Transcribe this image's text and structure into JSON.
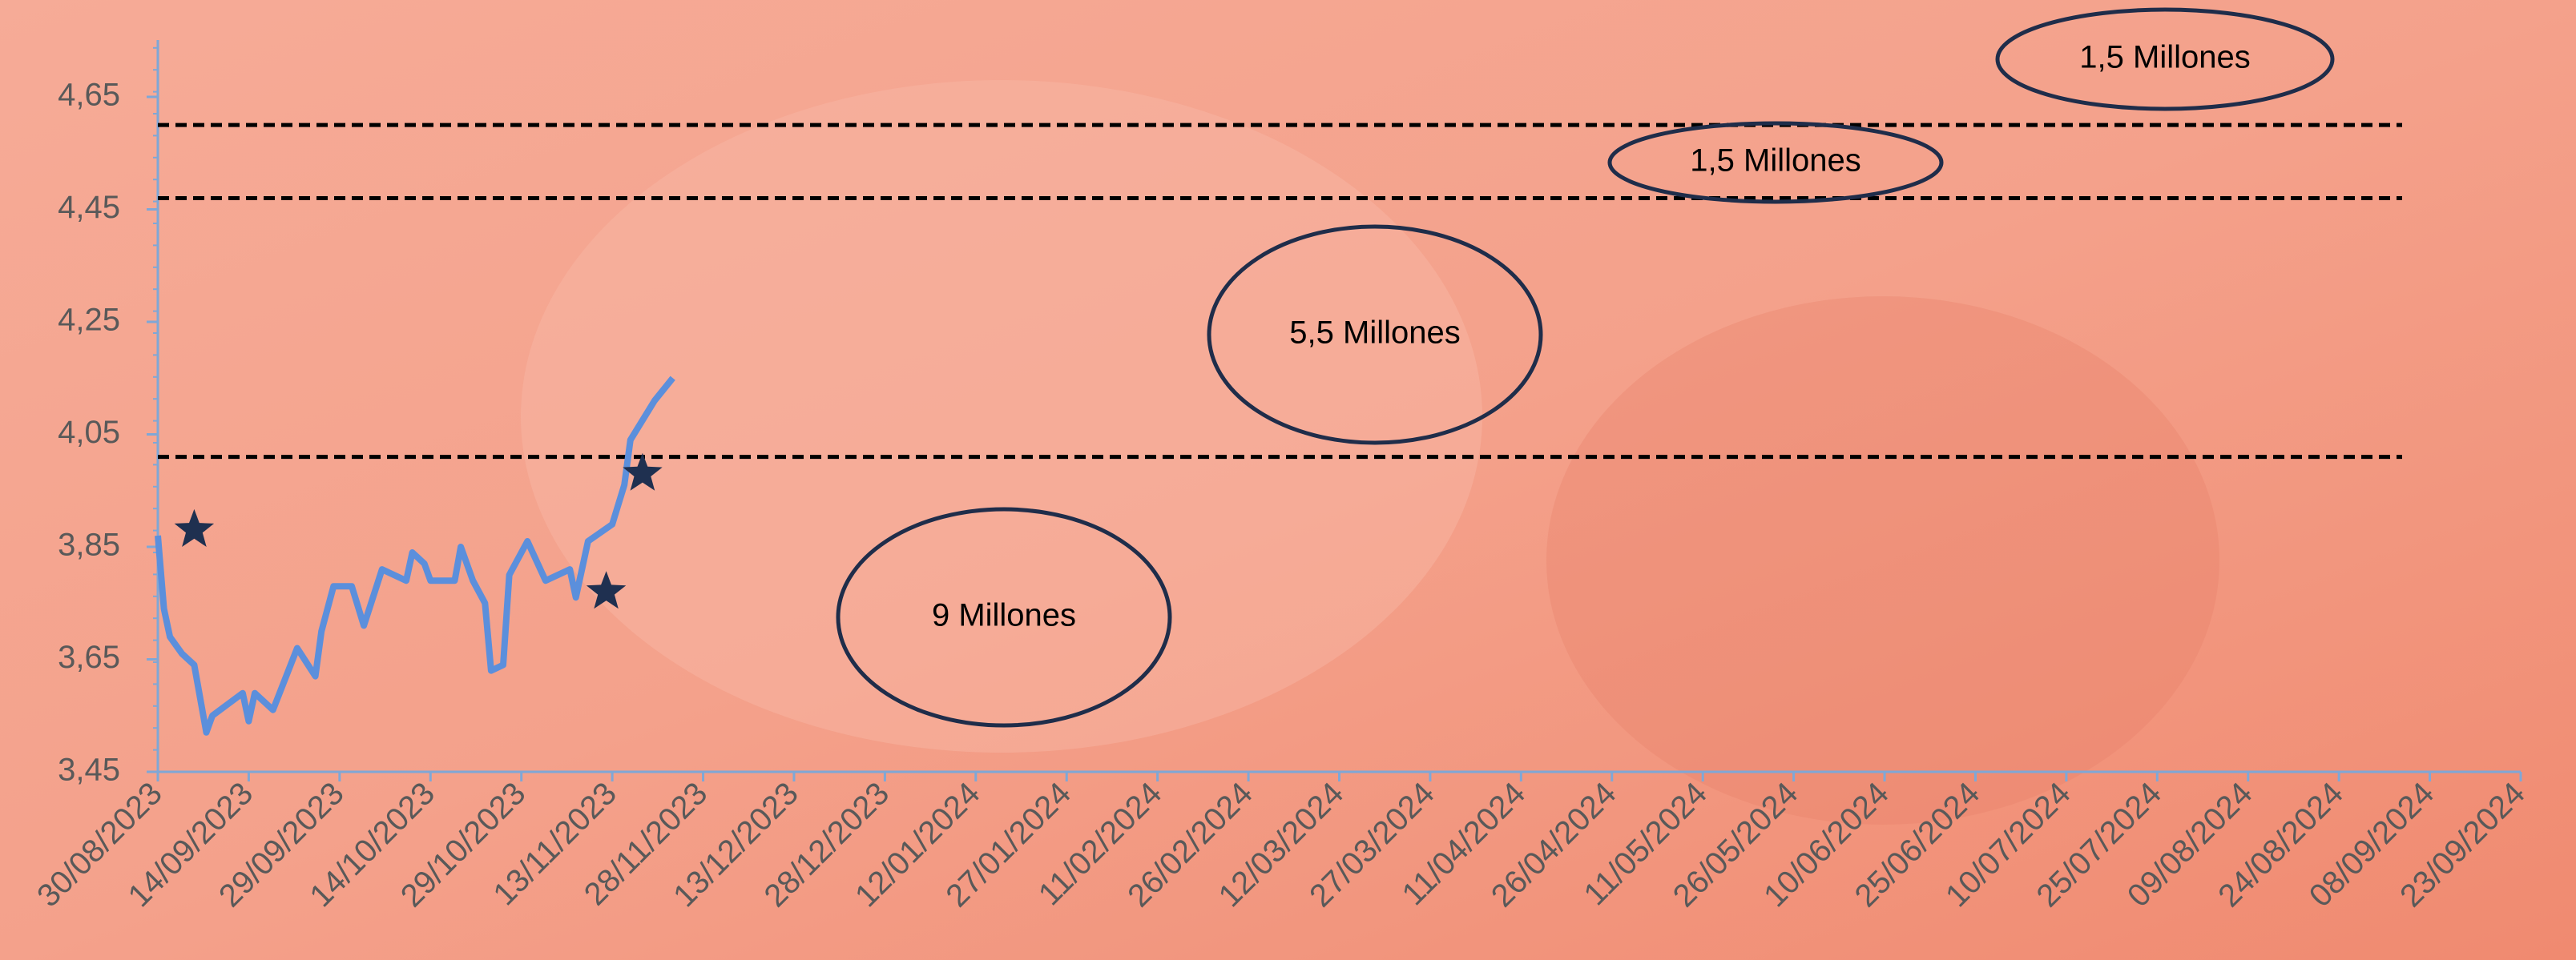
{
  "chart_data": {
    "type": "line",
    "color": "#5b8fdc",
    "x": [
      "2023-08-30",
      "2023-08-31",
      "2023-09-01",
      "2023-09-03",
      "2023-09-05",
      "2023-09-07",
      "2023-09-08",
      "2023-09-13",
      "2023-09-14",
      "2023-09-15",
      "2023-09-18",
      "2023-09-22",
      "2023-09-25",
      "2023-09-26",
      "2023-09-28",
      "2023-10-01",
      "2023-10-03",
      "2023-10-06",
      "2023-10-10",
      "2023-10-11",
      "2023-10-13",
      "2023-10-14",
      "2023-10-18",
      "2023-10-19",
      "2023-10-21",
      "2023-10-23",
      "2023-10-24",
      "2023-10-26",
      "2023-10-27",
      "2023-10-30",
      "2023-11-02",
      "2023-11-06",
      "2023-11-07",
      "2023-11-09",
      "2023-11-13",
      "2023-11-15",
      "2023-11-16",
      "2023-11-20",
      "2023-11-23"
    ],
    "values": [
      3.87,
      3.74,
      3.69,
      3.66,
      3.64,
      3.52,
      3.55,
      3.59,
      3.54,
      3.59,
      3.56,
      3.67,
      3.62,
      3.7,
      3.78,
      3.78,
      3.71,
      3.81,
      3.79,
      3.84,
      3.82,
      3.79,
      3.79,
      3.85,
      3.79,
      3.75,
      3.63,
      3.64,
      3.8,
      3.86,
      3.79,
      3.81,
      3.76,
      3.86,
      3.89,
      3.96,
      4.04,
      4.11,
      4.15
    ],
    "markers": {
      "color": "#1f3050",
      "x": [
        "2023-09-05",
        "2023-11-12",
        "2023-11-18"
      ],
      "values": [
        3.88,
        3.77,
        3.98
      ]
    },
    "reference_lines": [
      4.01,
      4.47,
      4.6
    ],
    "ylim": [
      3.45,
      4.65
    ],
    "yticks": [
      {
        "value": 3.45,
        "label": "3,45"
      },
      {
        "value": 3.65,
        "label": "3,65"
      },
      {
        "value": 3.85,
        "label": "3,85"
      },
      {
        "value": 4.05,
        "label": "4,05"
      },
      {
        "value": 4.25,
        "label": "4,25"
      },
      {
        "value": 4.45,
        "label": "4,45"
      },
      {
        "value": 4.65,
        "label": "4,65"
      }
    ],
    "xlim": [
      "2023-08-30",
      "2024-09-23"
    ],
    "xticks": [
      {
        "value": "2023-08-30",
        "label": "30/08/2023"
      },
      {
        "value": "2023-09-14",
        "label": "14/09/2023"
      },
      {
        "value": "2023-09-29",
        "label": "29/09/2023"
      },
      {
        "value": "2023-10-14",
        "label": "14/10/2023"
      },
      {
        "value": "2023-10-29",
        "label": "29/10/2023"
      },
      {
        "value": "2023-11-13",
        "label": "13/11/2023"
      },
      {
        "value": "2023-11-28",
        "label": "28/11/2023"
      },
      {
        "value": "2023-12-13",
        "label": "13/12/2023"
      },
      {
        "value": "2023-12-28",
        "label": "28/12/2023"
      },
      {
        "value": "2024-01-12",
        "label": "12/01/2024"
      },
      {
        "value": "2024-01-27",
        "label": "27/01/2024"
      },
      {
        "value": "2024-02-11",
        "label": "11/02/2024"
      },
      {
        "value": "2024-02-26",
        "label": "26/02/2024"
      },
      {
        "value": "2024-03-12",
        "label": "12/03/2024"
      },
      {
        "value": "2024-03-27",
        "label": "27/03/2024"
      },
      {
        "value": "2024-04-11",
        "label": "11/04/2024"
      },
      {
        "value": "2024-04-26",
        "label": "26/04/2024"
      },
      {
        "value": "2024-05-11",
        "label": "11/05/2024"
      },
      {
        "value": "2024-05-26",
        "label": "26/05/2024"
      },
      {
        "value": "2024-06-10",
        "label": "10/06/2024"
      },
      {
        "value": "2024-06-25",
        "label": "25/06/2024"
      },
      {
        "value": "2024-07-10",
        "label": "10/07/2024"
      },
      {
        "value": "2024-07-25",
        "label": "25/07/2024"
      },
      {
        "value": "2024-08-09",
        "label": "09/08/2024"
      },
      {
        "value": "2024-08-24",
        "label": "24/08/2024"
      },
      {
        "value": "2024-09-08",
        "label": "08/09/2024"
      },
      {
        "value": "2024-09-23",
        "label": "23/09/2024"
      }
    ],
    "annotations": [
      {
        "text": "1,5 Millones"
      },
      {
        "text": "1,5 Millones"
      },
      {
        "text": "5,5 Millones"
      },
      {
        "text": "9 Millones"
      }
    ]
  }
}
